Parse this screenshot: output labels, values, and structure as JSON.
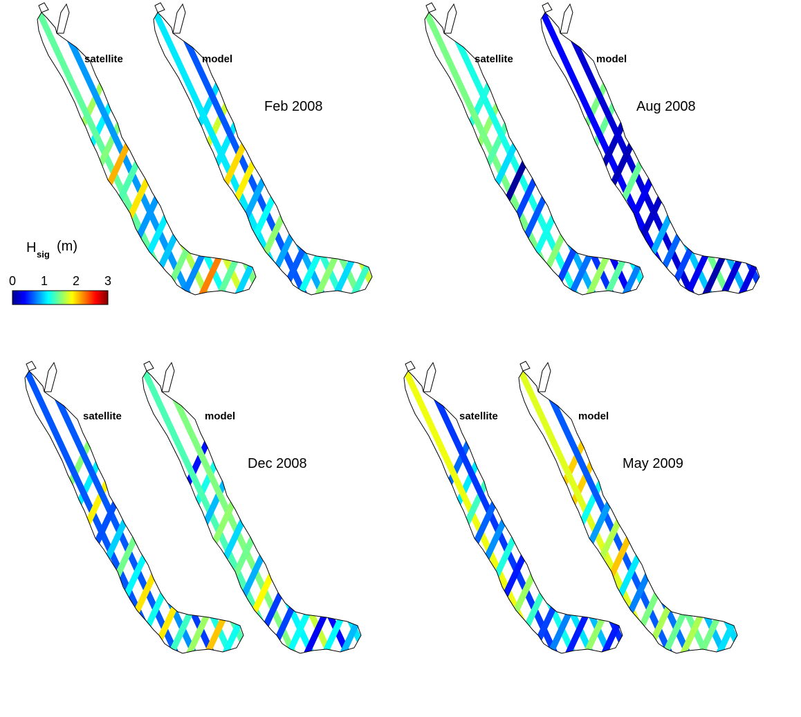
{
  "colorbar": {
    "title_main": "H",
    "title_sub": "sig",
    "title_unit": "(m)",
    "ticks": [
      "0",
      "1",
      "2",
      "3"
    ],
    "range": [
      0,
      3
    ],
    "colormap": [
      "#00008f",
      "#0000ff",
      "#0080ff",
      "#00ffff",
      "#80ff80",
      "#ffff00",
      "#ff8000",
      "#ff0000",
      "#800000"
    ]
  },
  "panels": [
    {
      "id": "feb-2008",
      "date_label": "Feb 2008",
      "left_label": "satellite",
      "right_label": "model",
      "mean_level_satellite": 1.5,
      "mean_level_model": 1.3
    },
    {
      "id": "aug-2008",
      "date_label": "Aug 2008",
      "left_label": "satellite",
      "right_label": "model",
      "mean_level_satellite": 0.8,
      "mean_level_model": 0.9
    },
    {
      "id": "dec-2008",
      "date_label": "Dec 2008",
      "left_label": "satellite",
      "right_label": "model",
      "mean_level_satellite": 1.3,
      "mean_level_model": 1.1
    },
    {
      "id": "may-2009",
      "date_label": "May 2009",
      "left_label": "satellite",
      "right_label": "model",
      "mean_level_satellite": 1.2,
      "mean_level_model": 1.3
    }
  ]
}
